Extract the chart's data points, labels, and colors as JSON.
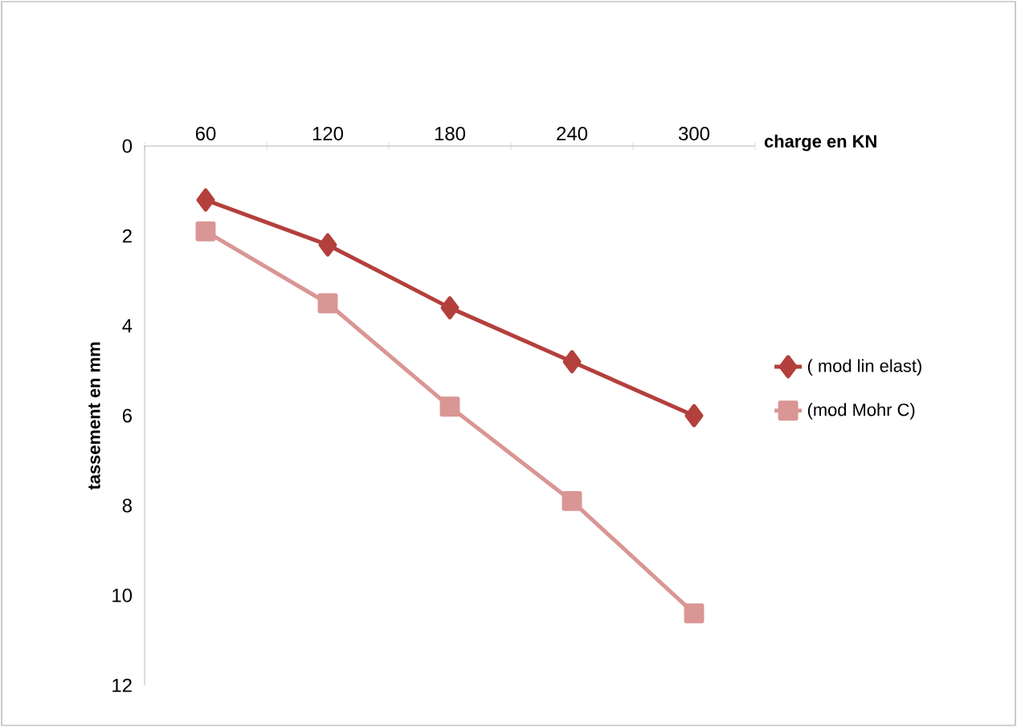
{
  "chart_data": {
    "type": "line",
    "xlabel": "charge en KN",
    "ylabel": "tassement en mm",
    "categories": [
      "60",
      "120",
      "180",
      "240",
      "300"
    ],
    "series": [
      {
        "name": "( mod lin elast)",
        "color": "#b3403d",
        "marker": "diamond",
        "values": [
          1.2,
          2.2,
          3.6,
          4.8,
          6.0
        ]
      },
      {
        "name": "(mod Mohr C)",
        "color": "#d99694",
        "marker": "square",
        "values": [
          1.9,
          3.5,
          5.8,
          7.9,
          10.4
        ]
      }
    ],
    "ylim": [
      12,
      0
    ],
    "yticks": [
      0,
      2,
      4,
      6,
      8,
      10,
      12
    ],
    "grid": false,
    "legend": "right",
    "line_style": "solid"
  }
}
